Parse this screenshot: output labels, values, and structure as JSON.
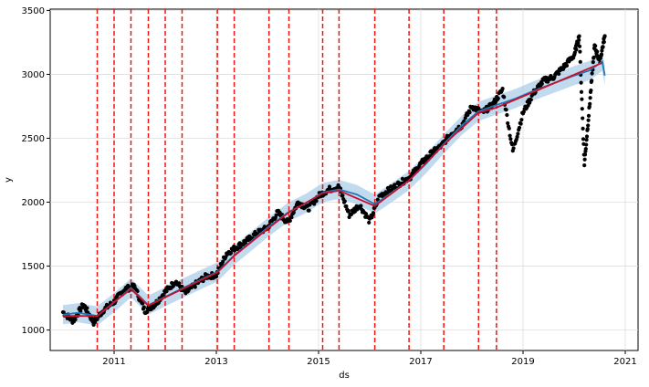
{
  "chart_data": {
    "type": "line",
    "title": "",
    "xlabel": "ds",
    "ylabel": "y",
    "xlim": [
      2009.75,
      2021.25
    ],
    "ylim": [
      840,
      3510
    ],
    "x_ticks": [
      2011,
      2013,
      2015,
      2017,
      2019,
      2021
    ],
    "y_ticks": [
      1000,
      1500,
      2000,
      2500,
      3000,
      3500
    ],
    "grid": true,
    "legend": "none",
    "colors": {
      "observed": "#000000",
      "forecast": "#1f77b4",
      "interval": "#aecde8",
      "trend": "#c8102e",
      "changepoint": "#e31a1c"
    },
    "changepoints": [
      2010.67,
      2011.0,
      2011.33,
      2011.67,
      2012.0,
      2012.33,
      2013.02,
      2013.35,
      2014.03,
      2014.42,
      2015.08,
      2015.4,
      2016.1,
      2016.77,
      2017.45,
      2018.13,
      2018.48
    ],
    "series": [
      {
        "name": "trend",
        "x": [
          2010.0,
          2010.67,
          2011.0,
          2011.33,
          2011.67,
          2012.0,
          2012.33,
          2013.02,
          2013.35,
          2014.03,
          2014.42,
          2015.08,
          2015.4,
          2016.1,
          2016.77,
          2017.45,
          2018.13,
          2018.48,
          2020.55
        ],
        "y": [
          1110,
          1110,
          1220,
          1320,
          1190,
          1255,
          1320,
          1450,
          1580,
          1800,
          1920,
          2070,
          2090,
          1970,
          2170,
          2450,
          2700,
          2740,
          3090
        ]
      },
      {
        "name": "forecast",
        "x": [
          2010.0,
          2010.3,
          2010.67,
          2011.0,
          2011.33,
          2011.67,
          2012.0,
          2012.33,
          2012.7,
          2013.02,
          2013.35,
          2013.7,
          2014.03,
          2014.42,
          2014.75,
          2015.08,
          2015.4,
          2015.75,
          2016.1,
          2016.45,
          2016.77,
          2017.1,
          2017.45,
          2017.8,
          2018.13,
          2018.48,
          2018.85,
          2019.2,
          2019.6,
          2020.0,
          2020.3,
          2020.55,
          2020.6
        ],
        "y": [
          1120,
          1135,
          1110,
          1215,
          1330,
          1195,
          1260,
          1325,
          1395,
          1455,
          1585,
          1700,
          1810,
          1925,
          1990,
          2075,
          2100,
          2060,
          1985,
          2080,
          2170,
          2300,
          2455,
          2600,
          2710,
          2760,
          2810,
          2870,
          2930,
          2990,
          3030,
          3100,
          2990
        ]
      },
      {
        "name": "observed",
        "x": [
          2010.0,
          2010.2,
          2010.4,
          2010.6,
          2010.8,
          2011.0,
          2011.2,
          2011.4,
          2011.6,
          2011.8,
          2012.0,
          2012.2,
          2012.4,
          2012.6,
          2012.8,
          2013.0,
          2013.2,
          2013.4,
          2013.6,
          2013.8,
          2014.0,
          2014.2,
          2014.4,
          2014.6,
          2014.8,
          2015.0,
          2015.2,
          2015.4,
          2015.6,
          2015.8,
          2016.0,
          2016.2,
          2016.4,
          2016.6,
          2016.8,
          2017.0,
          2017.2,
          2017.4,
          2017.6,
          2017.8,
          2018.0,
          2018.2,
          2018.4,
          2018.6,
          2018.8,
          2019.0,
          2019.2,
          2019.4,
          2019.6,
          2019.8,
          2020.0,
          2020.1,
          2020.2,
          2020.3,
          2020.4,
          2020.5,
          2020.6
        ],
        "y": [
          1140,
          1070,
          1200,
          1060,
          1160,
          1220,
          1320,
          1340,
          1150,
          1200,
          1300,
          1380,
          1290,
          1360,
          1420,
          1430,
          1600,
          1650,
          1700,
          1760,
          1800,
          1920,
          1840,
          2000,
          1950,
          2050,
          2100,
          2120,
          1900,
          1980,
          1850,
          2050,
          2100,
          2150,
          2200,
          2300,
          2380,
          2440,
          2540,
          2600,
          2750,
          2700,
          2760,
          2880,
          2400,
          2700,
          2850,
          2950,
          2980,
          3060,
          3150,
          3300,
          2300,
          2750,
          3220,
          3100,
          3300
        ]
      }
    ]
  }
}
